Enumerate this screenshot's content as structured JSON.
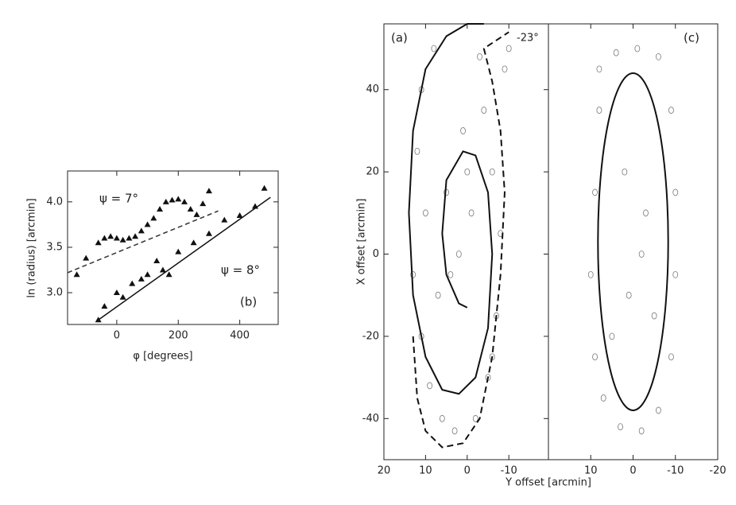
{
  "chart_data": [
    {
      "type": "scatter",
      "xlabel": "φ [degrees]",
      "ylabel": "ln (radius) [arcmin]",
      "annotations": [
        "ψ = 7°",
        "ψ = 8°",
        "(b)"
      ],
      "xlim": [
        -160,
        525
      ],
      "xticks": [
        0,
        200,
        400
      ],
      "ylim": [
        2.65,
        4.34
      ],
      "yticks": [
        {
          "value": 3,
          "label": "3.0"
        },
        {
          "value": 3.5,
          "label": "3.5"
        },
        {
          "value": 4,
          "label": "4.0"
        }
      ],
      "series": [
        {
          "color": "#111111",
          "x": [
            -130,
            -100,
            -60,
            -40,
            -20,
            0,
            20,
            40,
            60,
            80,
            100,
            120,
            140,
            160,
            180,
            200,
            220,
            240,
            260,
            280,
            300
          ],
          "values": [
            3.2,
            3.38,
            3.55,
            3.6,
            3.62,
            3.6,
            3.58,
            3.6,
            3.62,
            3.68,
            3.75,
            3.82,
            3.92,
            4.0,
            4.02,
            4.03,
            4.0,
            3.92,
            3.86,
            3.98,
            4.12
          ]
        },
        {
          "color": "#111111",
          "x": [
            -60,
            -40,
            0,
            20,
            50,
            80,
            100,
            130,
            150,
            170,
            200,
            250,
            300,
            350,
            400,
            450,
            480
          ],
          "values": [
            2.7,
            2.85,
            3.0,
            2.95,
            3.1,
            3.15,
            3.2,
            3.35,
            3.25,
            3.2,
            3.45,
            3.55,
            3.65,
            3.8,
            3.85,
            3.95,
            4.15
          ]
        },
        {
          "color": "#333333",
          "style": "dashed",
          "x": [
            -160,
            330
          ],
          "values": [
            3.22,
            3.9
          ]
        },
        {
          "color": "#111111",
          "style": "solid",
          "x": [
            -60,
            500
          ],
          "values": [
            2.7,
            4.05
          ]
        }
      ]
    },
    {
      "type": "map",
      "xlabel": "Y offset [arcmin]",
      "ylabel": "X offset [arcmin]",
      "annotations": [
        "(a)",
        "-23°"
      ],
      "xlim": [
        20,
        -19.5
      ],
      "xticks": [
        20,
        10,
        0,
        -10
      ],
      "ylim": [
        -50,
        56
      ],
      "yticks": [
        40,
        20,
        0,
        -20,
        -40
      ],
      "curves": [
        {
          "style": "solid",
          "x": [
            -4,
            0,
            5,
            10,
            13,
            14,
            13,
            10,
            6,
            2,
            -2,
            -5,
            -6,
            -5,
            -2,
            1,
            5,
            6,
            5,
            2,
            0
          ],
          "y": [
            56,
            56,
            53,
            45,
            30,
            10,
            -10,
            -25,
            -33,
            -34,
            -30,
            -18,
            0,
            15,
            24,
            25,
            18,
            5,
            -5,
            -12,
            -13
          ]
        },
        {
          "style": "dashed",
          "x": [
            13,
            12,
            10,
            6,
            1,
            -3,
            -6,
            -8,
            -9,
            -8,
            -6,
            -4,
            -10
          ],
          "y": [
            -20,
            -35,
            -43,
            -47,
            -46,
            -40,
            -25,
            -5,
            15,
            30,
            42,
            50,
            54
          ]
        }
      ],
      "clumps": {
        "x": [
          11,
          12,
          10,
          13,
          11,
          9,
          6,
          3,
          -2,
          -5,
          -7,
          -8,
          -6,
          -4,
          -9,
          -10,
          -3,
          1,
          5,
          2,
          -1,
          4,
          8,
          7,
          0,
          -6
        ],
        "y": [
          40,
          25,
          10,
          -5,
          -20,
          -32,
          -40,
          -43,
          -40,
          -30,
          -15,
          5,
          20,
          35,
          45,
          50,
          48,
          30,
          15,
          0,
          10,
          -5,
          50,
          -10,
          20,
          -25
        ]
      }
    },
    {
      "type": "map",
      "annotations": [
        "(c)"
      ],
      "xlim": [
        20,
        -20
      ],
      "xticks": [
        10,
        0,
        -10,
        -20
      ],
      "ylim": [
        -50,
        56
      ],
      "ellipse": {
        "cx": 0,
        "cy": 3,
        "rx": 8.3,
        "ry": 41
      },
      "clumps": {
        "x": [
          8,
          9,
          10,
          9,
          7,
          3,
          -2,
          -6,
          -9,
          -10,
          -10,
          -9,
          -6,
          -1,
          4,
          8,
          2,
          -3,
          1,
          -2,
          5,
          -5
        ],
        "y": [
          35,
          15,
          -5,
          -25,
          -35,
          -42,
          -43,
          -38,
          -25,
          -5,
          15,
          35,
          48,
          50,
          49,
          45,
          20,
          10,
          -10,
          0,
          -20,
          -15
        ]
      }
    }
  ]
}
